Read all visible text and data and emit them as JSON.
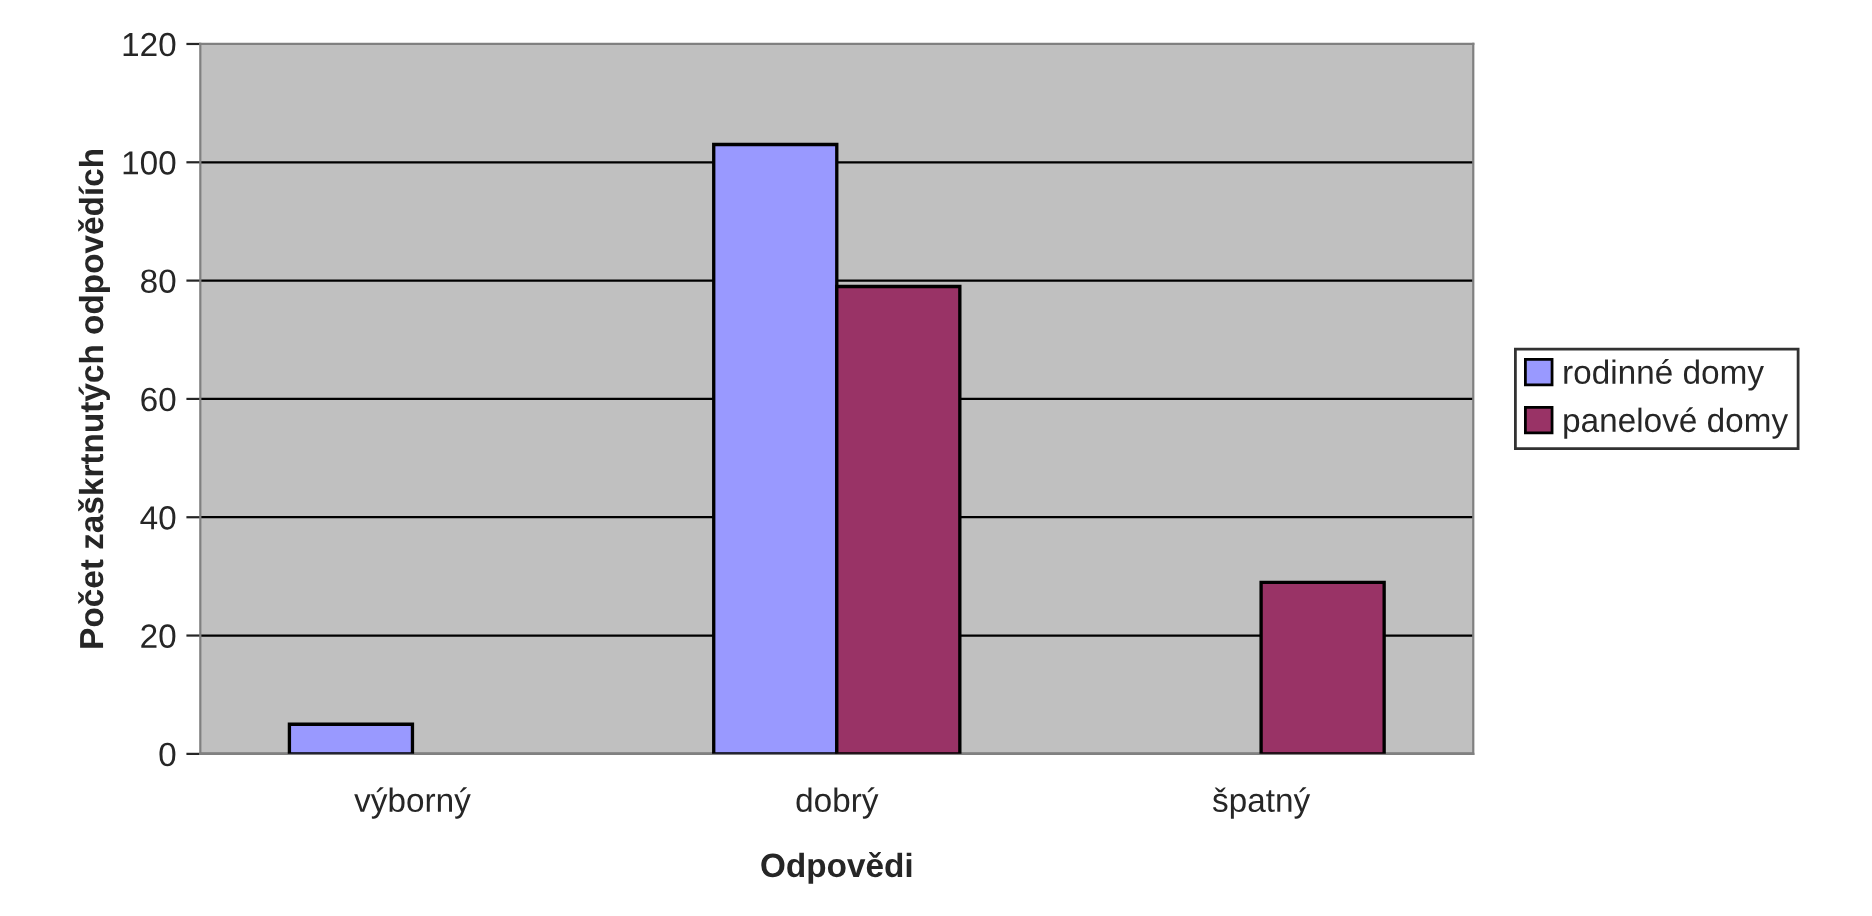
{
  "chart_data": {
    "type": "bar",
    "xlabel": "Odpovědi",
    "ylabel": "Počet zaškrtnutých odpovědích",
    "categories": [
      "výborný",
      "dobrý",
      "špatný"
    ],
    "series": [
      {
        "name": "rodinné domy",
        "color": "#9999ff",
        "values": [
          5,
          103,
          null
        ]
      },
      {
        "name": "panelové domy",
        "color": "#993366",
        "values": [
          null,
          79,
          29
        ]
      }
    ],
    "ylim": [
      0,
      120
    ],
    "yticks": [
      0,
      20,
      40,
      60,
      80,
      100,
      120
    ],
    "grid": "y",
    "legend": "right"
  }
}
